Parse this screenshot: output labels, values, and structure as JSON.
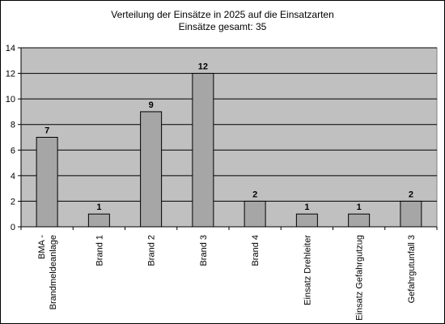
{
  "chart_data": {
    "type": "bar",
    "title": "Verteilung der Einsätze in 2025 auf die Einsatzarten",
    "subtitle": "Einsätze gesamt: 35",
    "categories": [
      [
        "BMA -",
        "Brandmeldeanlage"
      ],
      [
        "Brand 1"
      ],
      [
        "Brand 2"
      ],
      [
        "Brand 3"
      ],
      [
        "Brand 4"
      ],
      [
        "Einsatz Drehleiter"
      ],
      [
        "Einsatz Gefahrgutzug"
      ],
      [
        "Gefahrgutunfall 3"
      ]
    ],
    "values": [
      7,
      1,
      9,
      12,
      2,
      1,
      1,
      2
    ],
    "ylim": [
      0,
      14
    ],
    "yticks": [
      0,
      2,
      4,
      6,
      8,
      10,
      12,
      14
    ],
    "grid": true,
    "legend": "none",
    "colors": {
      "bar": "#a6a6a6",
      "bar_stroke": "#000000",
      "plot_bg": "#c0c0c0",
      "grid": "#000000"
    }
  }
}
